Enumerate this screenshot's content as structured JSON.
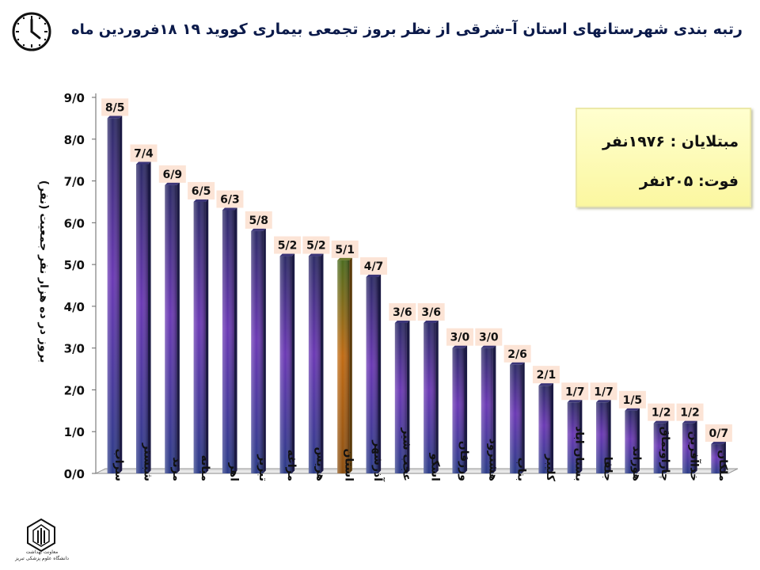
{
  "header": {
    "title": "رتبه بندی شهرستانهای استان آ–شرقی  از نظر بروز تجمعی بیماری کووید ۱۹",
    "date": "۱۸فروردین ماه"
  },
  "infobox": {
    "infected": "مبتلایان : ۱۹۷۶نفر",
    "deaths": "فوت:  ۲۰۵نفر"
  },
  "logo": {
    "line1": "معاونت بهداشت",
    "line2": "دانشگاه علوم پزشکی تبریز"
  },
  "chart_data": {
    "type": "bar",
    "ylabel": "بروز در ده هزار نفر جمعیت (نفر)",
    "ylim": [
      0,
      9
    ],
    "yticks": [
      "0/0",
      "1/0",
      "2/0",
      "3/0",
      "4/0",
      "5/0",
      "6/0",
      "7/0",
      "8/0",
      "9/0"
    ],
    "categories": [
      "سراب",
      "شبستر",
      "مرند",
      "میانه",
      "اهر",
      "تبریز",
      "مراغه",
      "هریس",
      "استان",
      "آذرشهر",
      "عجب شیر",
      "اسکو",
      "ورزقان",
      "هشترود",
      "بناب",
      "کلیبر",
      "بستان اباد",
      "جلفا",
      "هوراند",
      "چاراویماق",
      "خداآفرین",
      "ملکان"
    ],
    "values": [
      8.5,
      7.4,
      6.9,
      6.5,
      6.3,
      5.8,
      5.2,
      5.2,
      5.1,
      4.7,
      3.6,
      3.6,
      3.0,
      3.0,
      2.6,
      2.1,
      1.7,
      1.7,
      1.5,
      1.2,
      1.2,
      0.7
    ],
    "labels": [
      "8/5",
      "7/4",
      "6/9",
      "6/5",
      "6/3",
      "5/8",
      "5/2",
      "5/2",
      "5/1",
      "4/7",
      "3/6",
      "3/6",
      "3/0",
      "3/0",
      "2/6",
      "2/1",
      "1/7",
      "1/7",
      "1/5",
      "1/2",
      "1/2",
      "0/7"
    ],
    "highlight_index": 8,
    "colors": {
      "bar_top": "#2c2a66",
      "bar_mid": "#6a38b4",
      "bar_bottom": "#2a3a86",
      "highlight_top": "#4b6a1c",
      "highlight_mid": "#c06a12",
      "label_bg": "#fce4d6"
    }
  }
}
